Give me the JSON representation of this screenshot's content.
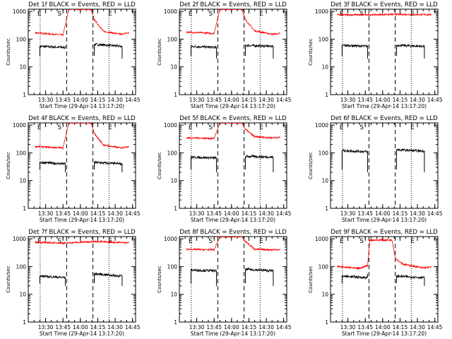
{
  "figure": {
    "ylabel": "Counts/sec",
    "xlabel": "Start Time (29-Apr-14 13:17:20)",
    "ytick_labels": [
      "1",
      "10",
      "100",
      "1000"
    ],
    "xtick_labels": [
      "13:30",
      "13:45",
      "14:00",
      "14:15",
      "14:30",
      "14:45"
    ],
    "marker_labels": [
      "E",
      "S",
      "E"
    ],
    "colors": {
      "events": "#000000",
      "lld": "#ff0000",
      "axes": "#000000",
      "background": "#ffffff"
    }
  },
  "chart_data": [
    {
      "type": "line",
      "title": "Det 1f BLACK = Events, RED = LLD",
      "xlabel": "Start Time (29-Apr-14 13:17:20)",
      "ylabel": "Counts/sec",
      "y_scale": "log",
      "ylim": [
        1,
        1200
      ],
      "xlim_minutes_after_start": [
        -2.3,
        90.3
      ],
      "marker_lines": {
        "dotted": [
          "13:25:20",
          "14:24:40"
        ],
        "dashed": [
          "13:48:10",
          "14:10:50"
        ]
      },
      "series": [
        {
          "name": "Events",
          "color": "black",
          "x": [
            "13:25",
            "13:47",
            "14:12",
            "14:36"
          ],
          "values": [
            55,
            50,
            65,
            55
          ],
          "y_after_gap_end": 58
        },
        {
          "name": "LLD",
          "color": "red",
          "x": [
            "13:21",
            "13:45",
            "13:50",
            "14:09",
            "14:12",
            "14:20",
            "14:35",
            "14:42"
          ],
          "values": [
            170,
            140,
            1200,
            1200,
            500,
            190,
            150,
            170
          ]
        }
      ]
    },
    {
      "type": "line",
      "title": "Det 2f BLACK = Events, RED = LLD",
      "xlabel": "Start Time (29-Apr-14 13:17:20)",
      "ylabel": "Counts/sec",
      "y_scale": "log",
      "ylim": [
        1,
        1200
      ],
      "xlim_minutes_after_start": [
        -2.3,
        90.3
      ],
      "marker_lines": {
        "dotted": [
          "13:25:20",
          "14:24:40"
        ],
        "dashed": [
          "13:48:10",
          "14:10:50"
        ]
      },
      "series": [
        {
          "name": "Events",
          "color": "black",
          "x": [
            "13:25",
            "13:47",
            "14:12",
            "14:36"
          ],
          "values": [
            55,
            50,
            60,
            55
          ]
        },
        {
          "name": "LLD",
          "color": "red",
          "x": [
            "13:21",
            "13:45",
            "13:50",
            "14:09",
            "14:12",
            "14:20",
            "14:35",
            "14:42"
          ],
          "values": [
            180,
            160,
            1200,
            1200,
            500,
            200,
            150,
            160
          ]
        }
      ]
    },
    {
      "type": "line",
      "title": "Det 3f BLACK = Events, RED = LLD",
      "xlabel": "Start Time (29-Apr-14 13:17:20)",
      "ylabel": "Counts/sec",
      "y_scale": "log",
      "ylim": [
        1,
        1200
      ],
      "xlim_minutes_after_start": [
        -2.3,
        90.3
      ],
      "marker_lines": {
        "dotted": [
          "13:25:20",
          "14:24:40"
        ],
        "dashed": [
          "13:48:10",
          "14:10:50"
        ]
      },
      "series": [
        {
          "name": "Events",
          "color": "black",
          "x": [
            "13:25",
            "13:47",
            "14:12",
            "14:36"
          ],
          "values": [
            60,
            55,
            60,
            55
          ]
        },
        {
          "name": "LLD",
          "color": "red",
          "x": [
            "13:21",
            "13:46",
            "14:12",
            "14:42"
          ],
          "values": [
            750,
            750,
            780,
            760
          ]
        }
      ]
    },
    {
      "type": "line",
      "title": "Det 4f BLACK = Events, RED = LLD",
      "xlabel": "Start Time (29-Apr-14 13:17:20)",
      "ylabel": "Counts/sec",
      "y_scale": "log",
      "ylim": [
        1,
        1200
      ],
      "xlim_minutes_after_start": [
        -2.3,
        90.3
      ],
      "marker_lines": {
        "dotted": [
          "13:25:20",
          "14:24:40"
        ],
        "dashed": [
          "13:48:10",
          "14:10:50"
        ]
      },
      "series": [
        {
          "name": "Events",
          "color": "black",
          "x": [
            "13:25",
            "13:47",
            "14:12",
            "14:36"
          ],
          "values": [
            45,
            40,
            45,
            40
          ]
        },
        {
          "name": "LLD",
          "color": "red",
          "x": [
            "13:21",
            "13:45",
            "13:50",
            "14:09",
            "14:12",
            "14:20",
            "14:35",
            "14:42"
          ],
          "values": [
            170,
            150,
            1200,
            1200,
            500,
            190,
            150,
            170
          ]
        }
      ]
    },
    {
      "type": "line",
      "title": "Det 5f BLACK = Events, RED = LLD",
      "xlabel": "Start Time (29-Apr-14 13:17:20)",
      "ylabel": "Counts/sec",
      "y_scale": "log",
      "ylim": [
        1,
        1200
      ],
      "xlim_minutes_after_start": [
        -2.3,
        90.3
      ],
      "marker_lines": {
        "dotted": [
          "13:25:20",
          "14:24:40"
        ],
        "dashed": [
          "13:48:10",
          "14:10:50"
        ]
      },
      "series": [
        {
          "name": "Events",
          "color": "black",
          "x": [
            "13:25",
            "13:47",
            "14:12",
            "14:36"
          ],
          "values": [
            70,
            65,
            75,
            70
          ]
        },
        {
          "name": "LLD",
          "color": "red",
          "x": [
            "13:21",
            "13:45",
            "13:50",
            "14:09",
            "14:12",
            "14:20",
            "14:35",
            "14:42"
          ],
          "values": [
            350,
            330,
            1200,
            1200,
            700,
            380,
            350,
            360
          ]
        }
      ]
    },
    {
      "type": "line",
      "title": "Det 6f BLACK = Events, RED = LLD",
      "xlabel": "Start Time (29-Apr-14 13:17:20)",
      "ylabel": "Counts/sec",
      "y_scale": "log",
      "ylim": [
        1,
        1200
      ],
      "xlim_minutes_after_start": [
        -2.3,
        90.3
      ],
      "marker_lines": {
        "dotted": [
          "13:25:20",
          "14:24:40"
        ],
        "dashed": [
          "13:48:10",
          "14:10:50"
        ]
      },
      "series": [
        {
          "name": "Events",
          "color": "black",
          "x": [
            "13:25",
            "13:47",
            "14:12",
            "14:36"
          ],
          "values": [
            120,
            110,
            130,
            115
          ]
        }
      ]
    },
    {
      "type": "line",
      "title": "Det 7f BLACK = Events, RED = LLD",
      "xlabel": "Start Time (29-Apr-14 13:17:20)",
      "ylabel": "Counts/sec",
      "y_scale": "log",
      "ylim": [
        1,
        1200
      ],
      "xlim_minutes_after_start": [
        -2.3,
        90.3
      ],
      "marker_lines": {
        "dotted": [
          "13:25:20",
          "14:24:40"
        ],
        "dashed": [
          "13:48:10",
          "14:10:50"
        ]
      },
      "series": [
        {
          "name": "Events",
          "color": "black",
          "x": [
            "13:25",
            "13:47",
            "14:12",
            "14:36"
          ],
          "values": [
            45,
            40,
            55,
            45
          ]
        },
        {
          "name": "LLD",
          "color": "red",
          "x": [
            "13:21",
            "13:46",
            "14:12",
            "14:42"
          ],
          "values": [
            750,
            700,
            800,
            720
          ]
        }
      ]
    },
    {
      "type": "line",
      "title": "Det 8f BLACK = Events, RED = LLD",
      "xlabel": "Start Time (29-Apr-14 13:17:20)",
      "ylabel": "Counts/sec",
      "y_scale": "log",
      "ylim": [
        1,
        1200
      ],
      "xlim_minutes_after_start": [
        -2.3,
        90.3
      ],
      "marker_lines": {
        "dotted": [
          "13:25:20",
          "14:24:40"
        ],
        "dashed": [
          "13:48:10",
          "14:10:50"
        ]
      },
      "series": [
        {
          "name": "Events",
          "color": "black",
          "x": [
            "13:25",
            "13:47",
            "14:12",
            "14:36"
          ],
          "values": [
            75,
            70,
            80,
            70
          ]
        },
        {
          "name": "LLD",
          "color": "red",
          "x": [
            "13:21",
            "13:45",
            "13:50",
            "14:09",
            "14:12",
            "14:20",
            "14:35",
            "14:42"
          ],
          "values": [
            420,
            400,
            1200,
            1200,
            800,
            420,
            400,
            410
          ]
        }
      ]
    },
    {
      "type": "line",
      "title": "Det 9f BLACK = Events, RED = LLD",
      "xlabel": "Start Time (29-Apr-14 13:17:20)",
      "ylabel": "Counts/sec",
      "y_scale": "log",
      "ylim": [
        1,
        1200
      ],
      "xlim_minutes_after_start": [
        -2.3,
        90.3
      ],
      "marker_lines": {
        "dotted": [
          "13:25:20",
          "14:24:40"
        ],
        "dashed": [
          "13:48:10",
          "14:10:50"
        ]
      },
      "series": [
        {
          "name": "Events",
          "color": "black",
          "x": [
            "13:25",
            "13:47",
            "14:12",
            "14:36"
          ],
          "values": [
            45,
            40,
            45,
            40
          ],
          "y_after_gap_end": 55
        },
        {
          "name": "LLD",
          "color": "red",
          "x": [
            "13:21",
            "13:40",
            "13:47",
            "13:49",
            "14:08",
            "14:11",
            "14:18",
            "14:34",
            "14:42"
          ],
          "values": [
            100,
            85,
            110,
            900,
            900,
            200,
            120,
            90,
            95
          ]
        }
      ]
    }
  ]
}
